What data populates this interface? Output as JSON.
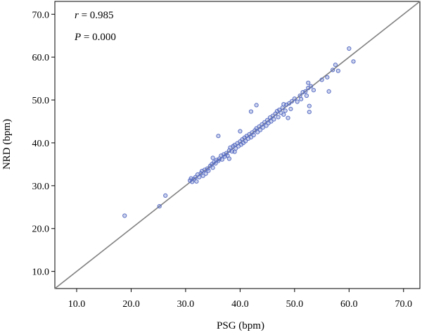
{
  "chart_data": {
    "type": "scatter",
    "xlabel": "PSG (bpm)",
    "ylabel": "NRD (bpm)",
    "xlim": [
      6.0,
      73.0
    ],
    "ylim": [
      6.0,
      73.0
    ],
    "xticks": [
      "10.0",
      "20.0",
      "30.0",
      "40.0",
      "50.0",
      "60.0",
      "70.0"
    ],
    "yticks": [
      "10.0",
      "20.0",
      "30.0",
      "40.0",
      "50.0",
      "60.0",
      "70.0"
    ],
    "annotations": {
      "r_symbol": "r",
      "r_value": " = 0.985",
      "p_symbol": "P",
      "p_value": " = 0.000"
    },
    "identity_line": true,
    "grid": false,
    "marker_color": "#5b6fc4",
    "line_color": "#808080",
    "points": [
      [
        18.8,
        23.0
      ],
      [
        25.2,
        25.2
      ],
      [
        26.3,
        27.7
      ],
      [
        30.8,
        31.2
      ],
      [
        31.0,
        31.7
      ],
      [
        31.2,
        30.9
      ],
      [
        31.5,
        31.5
      ],
      [
        31.8,
        32.0
      ],
      [
        32.0,
        31.0
      ],
      [
        32.2,
        32.6
      ],
      [
        32.5,
        32.0
      ],
      [
        32.8,
        32.9
      ],
      [
        33.0,
        33.4
      ],
      [
        33.2,
        32.3
      ],
      [
        33.5,
        33.7
      ],
      [
        33.7,
        32.8
      ],
      [
        34.0,
        34.0
      ],
      [
        34.2,
        33.5
      ],
      [
        34.5,
        34.6
      ],
      [
        34.8,
        35.0
      ],
      [
        35.0,
        34.2
      ],
      [
        35.0,
        36.5
      ],
      [
        35.2,
        35.5
      ],
      [
        35.5,
        35.2
      ],
      [
        35.7,
        36.0
      ],
      [
        36.0,
        35.8
      ],
      [
        36.0,
        41.6
      ],
      [
        36.2,
        36.3
      ],
      [
        36.5,
        37.0
      ],
      [
        36.7,
        36.1
      ],
      [
        37.0,
        37.3
      ],
      [
        37.2,
        36.8
      ],
      [
        37.5,
        37.6
      ],
      [
        37.7,
        37.0
      ],
      [
        38.0,
        38.2
      ],
      [
        38.0,
        36.3
      ],
      [
        38.2,
        38.9
      ],
      [
        38.5,
        38.0
      ],
      [
        38.7,
        39.2
      ],
      [
        39.0,
        39.5
      ],
      [
        39.0,
        37.9
      ],
      [
        39.2,
        38.7
      ],
      [
        39.5,
        39.9
      ],
      [
        39.7,
        39.2
      ],
      [
        40.0,
        40.3
      ],
      [
        40.0,
        42.7
      ],
      [
        40.2,
        39.6
      ],
      [
        40.4,
        40.8
      ],
      [
        40.6,
        40.0
      ],
      [
        40.8,
        41.2
      ],
      [
        41.0,
        40.4
      ],
      [
        41.2,
        41.6
      ],
      [
        41.5,
        41.0
      ],
      [
        41.7,
        42.0
      ],
      [
        42.0,
        41.3
      ],
      [
        42.0,
        47.3
      ],
      [
        42.2,
        42.4
      ],
      [
        42.5,
        41.8
      ],
      [
        42.7,
        42.9
      ],
      [
        43.0,
        43.4
      ],
      [
        43.0,
        48.8
      ],
      [
        43.2,
        42.5
      ],
      [
        43.5,
        43.8
      ],
      [
        43.7,
        43.0
      ],
      [
        44.0,
        44.3
      ],
      [
        44.2,
        43.6
      ],
      [
        44.5,
        44.8
      ],
      [
        44.8,
        44.0
      ],
      [
        45.0,
        45.3
      ],
      [
        45.2,
        44.6
      ],
      [
        45.5,
        45.9
      ],
      [
        45.7,
        45.0
      ],
      [
        46.0,
        46.3
      ],
      [
        46.2,
        45.5
      ],
      [
        46.5,
        46.8
      ],
      [
        46.8,
        47.4
      ],
      [
        47.0,
        46.0
      ],
      [
        47.2,
        47.7
      ],
      [
        47.5,
        47.0
      ],
      [
        47.8,
        48.2
      ],
      [
        48.0,
        46.6
      ],
      [
        48.0,
        49.0
      ],
      [
        48.3,
        47.5
      ],
      [
        48.5,
        48.9
      ],
      [
        48.8,
        45.8
      ],
      [
        49.0,
        49.2
      ],
      [
        49.3,
        47.9
      ],
      [
        49.5,
        49.7
      ],
      [
        50.0,
        50.3
      ],
      [
        50.5,
        49.6
      ],
      [
        51.0,
        51.0
      ],
      [
        51.2,
        50.2
      ],
      [
        51.5,
        51.8
      ],
      [
        52.0,
        52.0
      ],
      [
        52.2,
        51.0
      ],
      [
        52.5,
        52.8
      ],
      [
        52.5,
        54.0
      ],
      [
        52.7,
        48.6
      ],
      [
        52.7,
        47.2
      ],
      [
        53.0,
        53.2
      ],
      [
        53.5,
        52.3
      ],
      [
        55.0,
        54.7
      ],
      [
        56.0,
        55.3
      ],
      [
        56.3,
        52.0
      ],
      [
        57.0,
        57.0
      ],
      [
        57.5,
        58.2
      ],
      [
        58.0,
        56.8
      ],
      [
        60.0,
        62.0
      ],
      [
        60.8,
        59.0
      ]
    ]
  }
}
